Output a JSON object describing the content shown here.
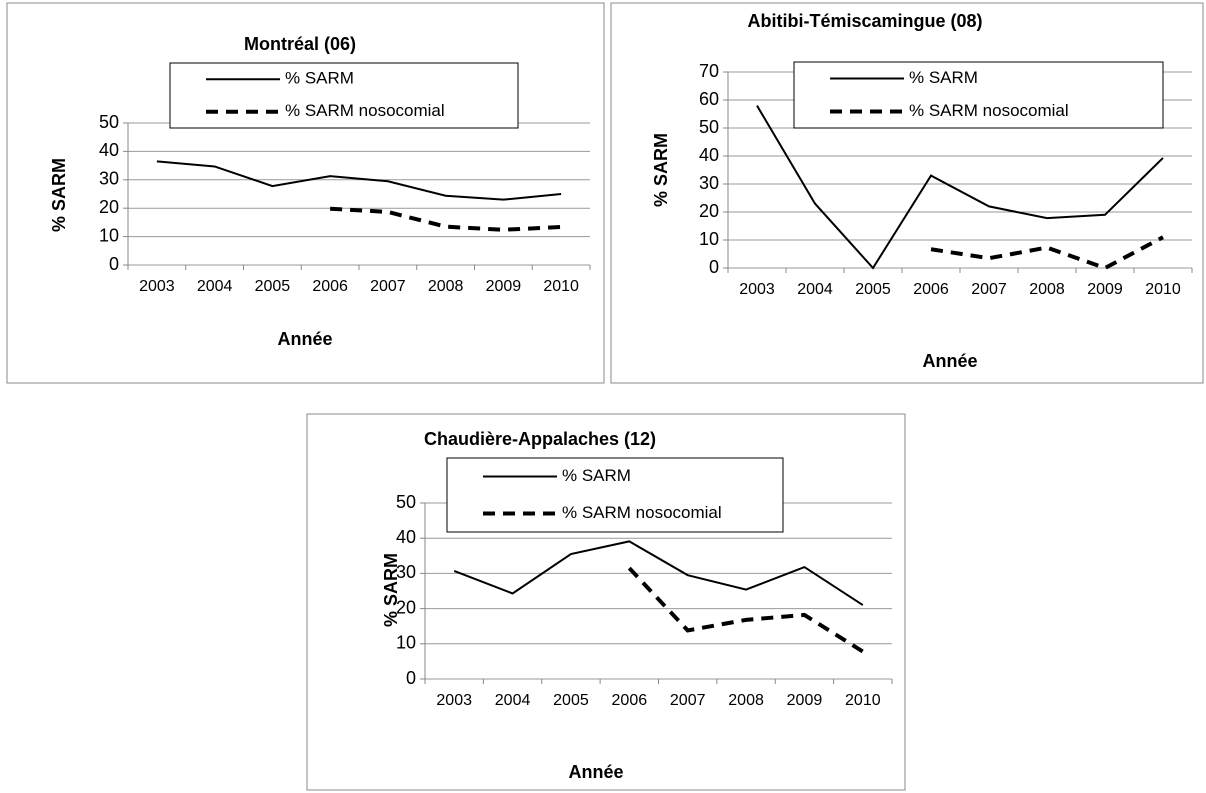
{
  "chart_data": [
    {
      "type": "line",
      "title": "Montréal (06)",
      "y_label": "% SARM",
      "x_label": "Année",
      "categories": [
        "2003",
        "2004",
        "2005",
        "2006",
        "2007",
        "2008",
        "2009",
        "2010"
      ],
      "series": [
        {
          "name": "% SARM",
          "color": "#000000",
          "dash": false,
          "values": [
            36.5,
            34.7,
            27.8,
            31.3,
            29.5,
            24.4,
            23,
            25
          ]
        },
        {
          "name": "% SARM nosocomial",
          "color": "#000000",
          "dash": true,
          "values": [
            null,
            null,
            null,
            19.8,
            18.7,
            13.5,
            12.4,
            13.4
          ]
        }
      ],
      "ylim": [
        0,
        50
      ],
      "yticks": [
        0,
        10,
        20,
        30,
        40,
        50
      ],
      "grid": true
    },
    {
      "type": "line",
      "title": "Abitibi-Témiscamingue (08)",
      "y_label": "% SARM",
      "x_label": "Année",
      "categories": [
        "2003",
        "2004",
        "2005",
        "2006",
        "2007",
        "2008",
        "2009",
        "2010"
      ],
      "series": [
        {
          "name": "% SARM",
          "color": "#000000",
          "dash": false,
          "values": [
            58,
            23,
            0,
            33,
            22,
            17.8,
            19,
            39.3
          ]
        },
        {
          "name": "% SARM nosocomial",
          "color": "#000000",
          "dash": true,
          "values": [
            null,
            null,
            null,
            6.7,
            3.5,
            7.3,
            0,
            11
          ]
        }
      ],
      "ylim": [
        0,
        70
      ],
      "yticks": [
        0,
        10,
        20,
        30,
        40,
        50,
        60,
        70
      ],
      "grid": true
    },
    {
      "type": "line",
      "title": "Chaudière-Appalaches (12)",
      "y_label": "% SARM",
      "x_label": "Année",
      "categories": [
        "2003",
        "2004",
        "2005",
        "2006",
        "2007",
        "2008",
        "2009",
        "2010"
      ],
      "series": [
        {
          "name": "% SARM",
          "color": "#000000",
          "dash": false,
          "values": [
            30.7,
            24.3,
            35.5,
            39.1,
            29.5,
            25.4,
            31.8,
            21
          ]
        },
        {
          "name": "% SARM nosocomial",
          "color": "#000000",
          "dash": true,
          "values": [
            null,
            null,
            null,
            31.5,
            13.8,
            16.8,
            18.2,
            7.8
          ]
        }
      ],
      "ylim": [
        0,
        50
      ],
      "yticks": [
        0,
        10,
        20,
        30,
        40,
        50
      ],
      "grid": true
    }
  ]
}
